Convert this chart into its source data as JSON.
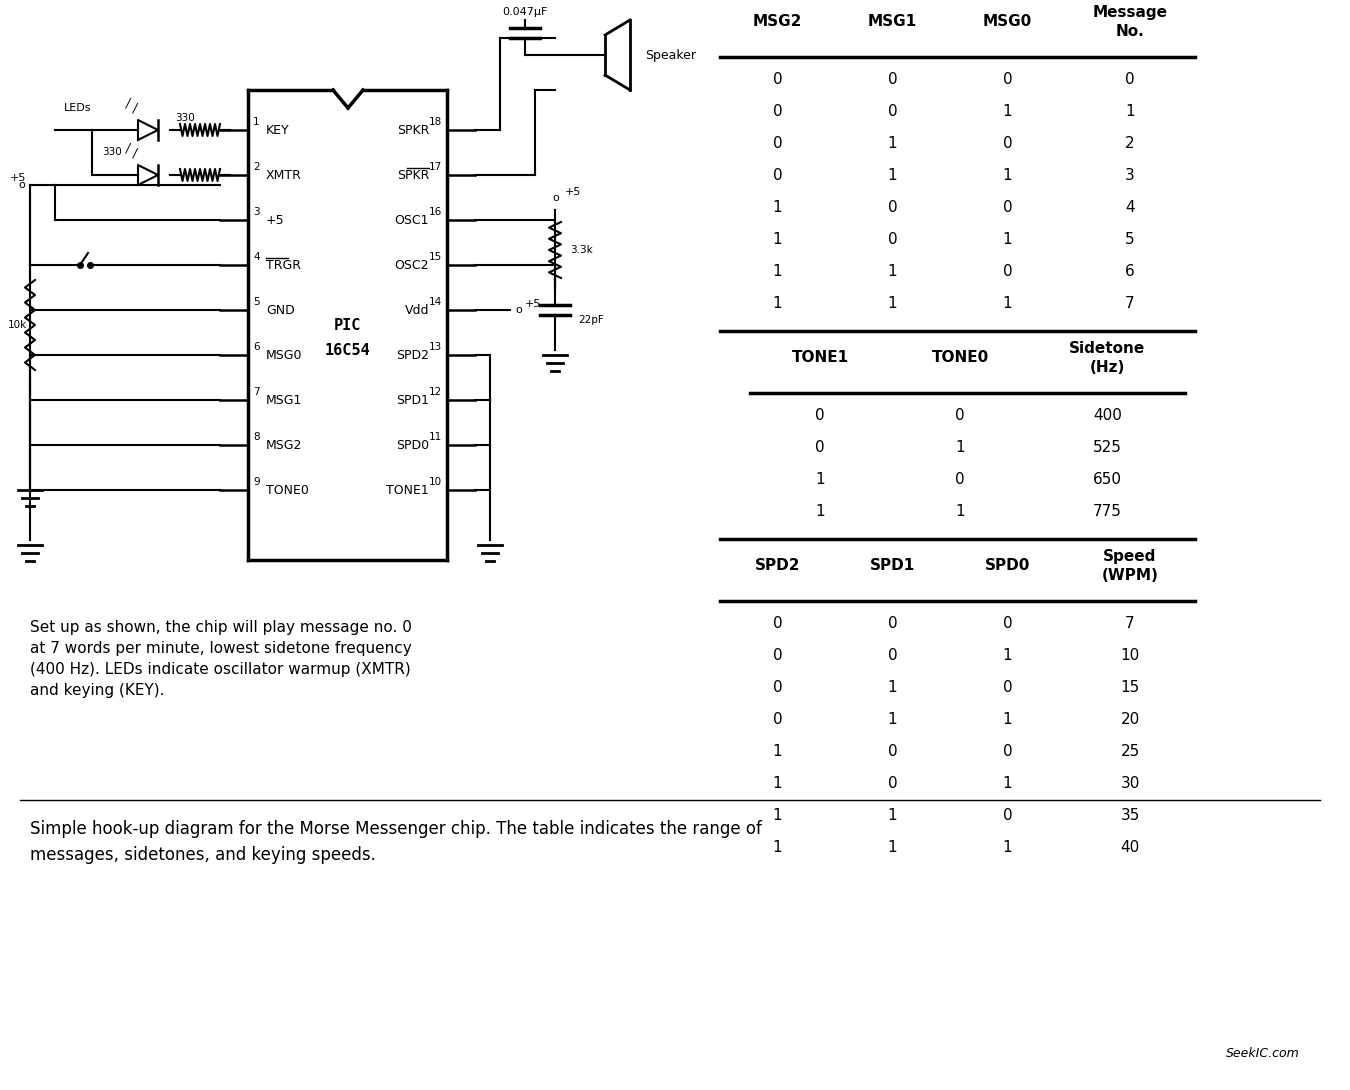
{
  "bg_color": "#ffffff",
  "title_text": "",
  "caption": "Simple hook-up diagram for the Morse Messenger chip. The table indicates the range of\nmessages, sidetones, and keying speeds.",
  "watermark": "SeekIC.com",
  "table1": {
    "headers": [
      "MSG2",
      "MSG1",
      "MSG0",
      "Message\nNo."
    ],
    "rows": [
      [
        "0",
        "0",
        "0",
        "0"
      ],
      [
        "0",
        "0",
        "1",
        "1"
      ],
      [
        "0",
        "1",
        "0",
        "2"
      ],
      [
        "0",
        "1",
        "1",
        "3"
      ],
      [
        "1",
        "0",
        "0",
        "4"
      ],
      [
        "1",
        "0",
        "1",
        "5"
      ],
      [
        "1",
        "1",
        "0",
        "6"
      ],
      [
        "1",
        "1",
        "1",
        "7"
      ]
    ]
  },
  "table2": {
    "headers": [
      "TONE1",
      "TONE0",
      "Sidetone\n(Hz)"
    ],
    "rows": [
      [
        "0",
        "0",
        "400"
      ],
      [
        "0",
        "1",
        "525"
      ],
      [
        "1",
        "0",
        "650"
      ],
      [
        "1",
        "1",
        "775"
      ]
    ]
  },
  "table3": {
    "headers": [
      "SPD2",
      "SPD1",
      "SPD0",
      "Speed\n(WPM)"
    ],
    "rows": [
      [
        "0",
        "0",
        "0",
        "7"
      ],
      [
        "0",
        "0",
        "1",
        "10"
      ],
      [
        "0",
        "1",
        "0",
        "15"
      ],
      [
        "0",
        "1",
        "1",
        "20"
      ],
      [
        "1",
        "0",
        "0",
        "25"
      ],
      [
        "1",
        "0",
        "1",
        "30"
      ],
      [
        "1",
        "1",
        "0",
        "35"
      ],
      [
        "1",
        "1",
        "1",
        "40"
      ]
    ]
  },
  "description_text": "Set up as shown, the chip will play message no. 0\nat 7 words per minute, lowest sidetone frequency\n(400 Hz). LEDs indicate oscillator warmup (XMTR)\nand keying (KEY)."
}
